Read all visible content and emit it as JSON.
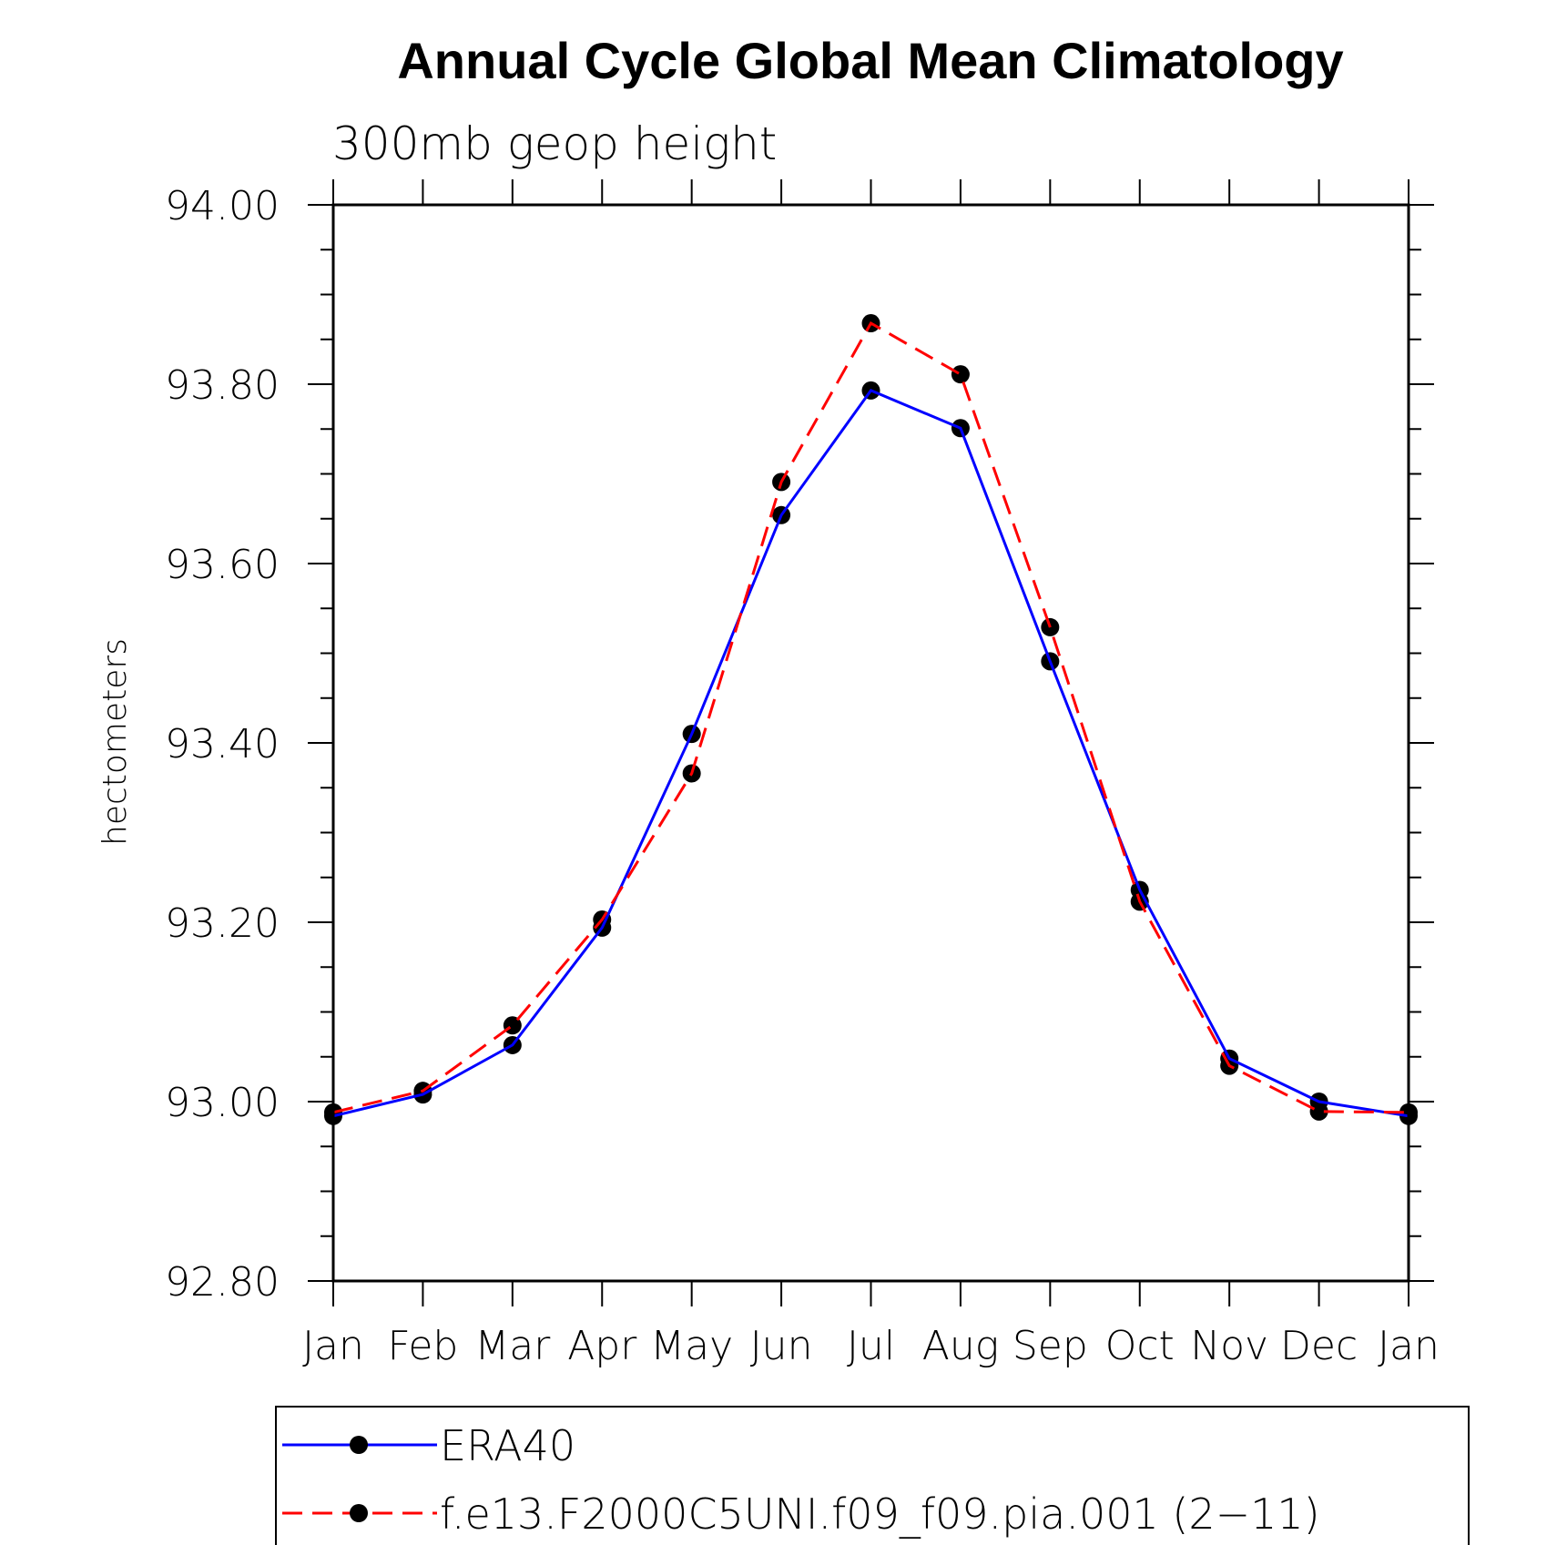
{
  "chart_data": {
    "type": "line",
    "title": "Annual Cycle Global Mean Climatology",
    "subtitle": "300mb geop height",
    "ylabel": "hectometers",
    "xlabel": "",
    "categories": [
      "Jan",
      "Feb",
      "Mar",
      "Apr",
      "May",
      "Jun",
      "Jul",
      "Aug",
      "Sep",
      "Oct",
      "Nov",
      "Dec",
      "Jan"
    ],
    "ylim": [
      92.8,
      94.0
    ],
    "yticks": [
      "92.80",
      "93.00",
      "93.20",
      "93.40",
      "93.60",
      "93.80",
      "94.00"
    ],
    "series": [
      {
        "name": "ERA40",
        "color": "#0000ff",
        "dash": "solid",
        "values": [
          92.984,
          93.008,
          93.063,
          93.194,
          93.41,
          93.654,
          93.793,
          93.751,
          93.491,
          93.236,
          93.048,
          93.0,
          92.984
        ]
      },
      {
        "name": "f.e13.F2000C5UNI.f09_f09.pia.001 (2−11)",
        "color": "#ff0000",
        "dash": "dashed",
        "values": [
          92.988,
          93.012,
          93.085,
          93.203,
          93.366,
          93.691,
          93.868,
          93.811,
          93.529,
          93.223,
          93.04,
          92.989,
          92.988
        ]
      }
    ],
    "legend_position": "bottom",
    "grid": false
  }
}
